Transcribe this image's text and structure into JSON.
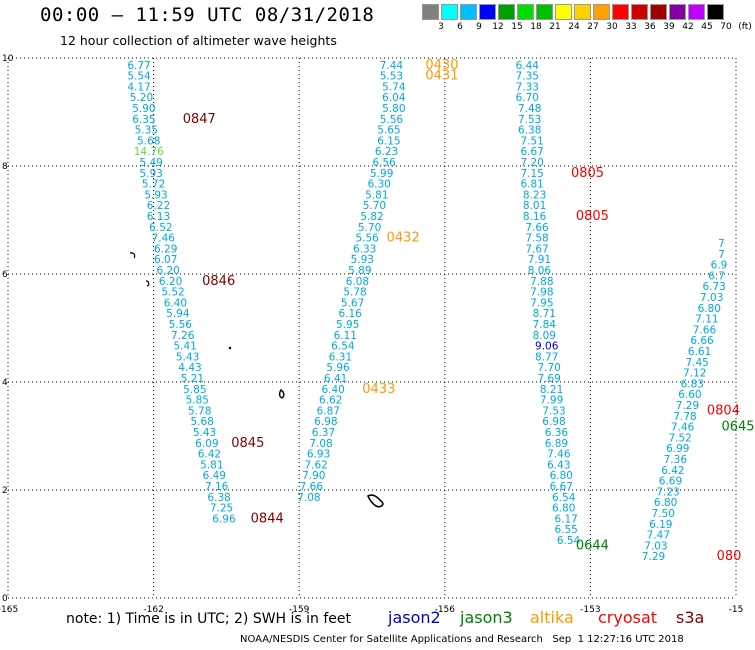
{
  "header": {
    "title": "00:00 – 11:59 UTC 08/31/2018",
    "subtitle": "12 hour collection of altimeter wave heights"
  },
  "legend_bar": {
    "labels": [
      "3",
      "6",
      "9",
      "12",
      "15",
      "18",
      "21",
      "24",
      "27",
      "30",
      "33",
      "36",
      "39",
      "42",
      "45",
      "70",
      "(ft)"
    ],
    "colors": [
      "#808080",
      "#00ffff",
      "#00bfff",
      "#0000ff",
      "#00a000",
      "#00e000",
      "#00c000",
      "#ffff00",
      "#ffd000",
      "#ffa000",
      "#ff0000",
      "#d00000",
      "#a00000",
      "#8000a0",
      "#c000ff",
      "#000000"
    ]
  },
  "footer": {
    "note": "note: 1) Time is in UTC; 2) SWH is in feet",
    "sat_jason2": "jason2",
    "sat_jason3": "jason3",
    "sat_altika": "altika",
    "sat_cryosat": "cryosat",
    "sat_s3a": "s3a",
    "credit": "NOAA/NESDIS Center for Satellite Applications and Research   Sep  1 12:27:16 UTC 2018"
  },
  "chart_data": {
    "type": "scatter",
    "title": "12 hour collection of altimeter wave heights",
    "xlabel": "",
    "ylabel": "",
    "xlim": [
      -165,
      -150
    ],
    "ylim": [
      0,
      10
    ],
    "x_ticks": [
      "-165",
      "-162",
      "-159",
      "-156",
      "-153",
      "-15"
    ],
    "y_ticks": [
      "0",
      "2",
      "4",
      "6",
      "8",
      "10"
    ],
    "grid": true,
    "colors": {
      "cyan": "#00aadd",
      "orange": "#ff9900",
      "maroon": "#800000",
      "red": "#ff0000",
      "green": "#008000",
      "lightgreen": "#66dd33",
      "blue": "#0000cc"
    },
    "tracks": [
      {
        "name": "track-a",
        "color": "#00aadd",
        "points": [
          [
            -162.3,
            9.8,
            "6.77"
          ],
          [
            -162.3,
            9.6,
            "5.54"
          ],
          [
            -162.3,
            9.4,
            "4.17"
          ],
          [
            -162.25,
            9.2,
            "5.20"
          ],
          [
            -162.2,
            9.0,
            "5.90"
          ],
          [
            -162.2,
            8.8,
            "6.35"
          ],
          [
            -162.15,
            8.6,
            "5.35"
          ],
          [
            -162.1,
            8.4,
            "5.68"
          ],
          [
            -162.1,
            8.2,
            "14.76"
          ],
          [
            -162.05,
            8.0,
            "5.49"
          ],
          [
            -162.05,
            7.8,
            "5.93"
          ],
          [
            -162.0,
            7.6,
            "5.72"
          ],
          [
            -161.95,
            7.4,
            "5.93"
          ],
          [
            -161.9,
            7.2,
            "6.22"
          ],
          [
            -161.9,
            7.0,
            "6.13"
          ],
          [
            -161.85,
            6.8,
            "6.52"
          ],
          [
            -161.8,
            6.6,
            "7.46"
          ],
          [
            -161.75,
            6.4,
            "6.29"
          ],
          [
            -161.75,
            6.2,
            "6.07"
          ],
          [
            -161.7,
            6.0,
            "6.20"
          ],
          [
            -161.65,
            5.8,
            "6.20"
          ],
          [
            -161.6,
            5.6,
            "5.52"
          ],
          [
            -161.55,
            5.4,
            "6.40"
          ],
          [
            -161.5,
            5.2,
            "5.94"
          ],
          [
            -161.45,
            5.0,
            "5.56"
          ],
          [
            -161.4,
            4.8,
            "7.26"
          ],
          [
            -161.35,
            4.6,
            "5.41"
          ],
          [
            -161.3,
            4.4,
            "5.43"
          ],
          [
            -161.25,
            4.2,
            "4.43"
          ],
          [
            -161.2,
            4.0,
            "5.21"
          ],
          [
            -161.15,
            3.8,
            "5.85"
          ],
          [
            -161.1,
            3.6,
            "5.85"
          ],
          [
            -161.05,
            3.4,
            "5.78"
          ],
          [
            -161.0,
            3.2,
            "5.68"
          ],
          [
            -160.95,
            3.0,
            "5.43"
          ],
          [
            -160.9,
            2.8,
            "6.09"
          ],
          [
            -160.85,
            2.6,
            "6.42"
          ],
          [
            -160.8,
            2.4,
            "5.81"
          ],
          [
            -160.75,
            2.2,
            "6.49"
          ],
          [
            -160.7,
            2.0,
            "7.16"
          ],
          [
            -160.65,
            1.8,
            "6.38"
          ],
          [
            -160.6,
            1.6,
            "7.25"
          ],
          [
            -160.55,
            1.4,
            "6.96"
          ]
        ]
      },
      {
        "name": "track-b",
        "color": "#00aadd",
        "points": [
          [
            -157.1,
            9.8,
            "7.44"
          ],
          [
            -157.1,
            9.6,
            "5.53"
          ],
          [
            -157.05,
            9.4,
            "5.74"
          ],
          [
            -157.05,
            9.2,
            "6.04"
          ],
          [
            -157.05,
            9.0,
            "5.80"
          ],
          [
            -157.1,
            8.8,
            "5.56"
          ],
          [
            -157.15,
            8.6,
            "5.65"
          ],
          [
            -157.15,
            8.4,
            "6.15"
          ],
          [
            -157.2,
            8.2,
            "6.23"
          ],
          [
            -157.25,
            8.0,
            "6.56"
          ],
          [
            -157.3,
            7.8,
            "5.99"
          ],
          [
            -157.35,
            7.6,
            "6.30"
          ],
          [
            -157.4,
            7.4,
            "5.81"
          ],
          [
            -157.45,
            7.2,
            "5.70"
          ],
          [
            -157.5,
            7.0,
            "5.82"
          ],
          [
            -157.55,
            6.8,
            "5.70"
          ],
          [
            -157.6,
            6.6,
            "5.56"
          ],
          [
            -157.65,
            6.4,
            "6.33"
          ],
          [
            -157.7,
            6.2,
            "5.93"
          ],
          [
            -157.75,
            6.0,
            "5.89"
          ],
          [
            -157.8,
            5.8,
            "6.08"
          ],
          [
            -157.85,
            5.6,
            "5.78"
          ],
          [
            -157.9,
            5.4,
            "5.67"
          ],
          [
            -157.95,
            5.2,
            "6.16"
          ],
          [
            -158.0,
            5.0,
            "5.95"
          ],
          [
            -158.05,
            4.8,
            "6.11"
          ],
          [
            -158.1,
            4.6,
            "6.54"
          ],
          [
            -158.15,
            4.4,
            "6.31"
          ],
          [
            -158.2,
            4.2,
            "5.96"
          ],
          [
            -158.25,
            4.0,
            "6.41"
          ],
          [
            -158.3,
            3.8,
            "6.40"
          ],
          [
            -158.35,
            3.6,
            "6.62"
          ],
          [
            -158.4,
            3.4,
            "6.87"
          ],
          [
            -158.45,
            3.2,
            "6.98"
          ],
          [
            -158.5,
            3.0,
            "6.37"
          ],
          [
            -158.55,
            2.8,
            "7.08"
          ],
          [
            -158.6,
            2.6,
            "6.93"
          ],
          [
            -158.65,
            2.4,
            "7.62"
          ],
          [
            -158.7,
            2.2,
            "7.90"
          ],
          [
            -158.75,
            2.0,
            "7.66"
          ],
          [
            -158.8,
            1.8,
            "7.08"
          ]
        ]
      },
      {
        "name": "track-c",
        "color": "#00aadd",
        "points": [
          [
            -154.3,
            9.8,
            "6.44"
          ],
          [
            -154.3,
            9.6,
            "7.35"
          ],
          [
            -154.3,
            9.4,
            "7.33"
          ],
          [
            -154.3,
            9.2,
            "6.70"
          ],
          [
            -154.25,
            9.0,
            "7.48"
          ],
          [
            -154.25,
            8.8,
            "7.53"
          ],
          [
            -154.25,
            8.6,
            "6.38"
          ],
          [
            -154.2,
            8.4,
            "7.51"
          ],
          [
            -154.2,
            8.2,
            "6.67"
          ],
          [
            -154.2,
            8.0,
            "7.20"
          ],
          [
            -154.2,
            7.8,
            "7.15"
          ],
          [
            -154.2,
            7.6,
            "6.81"
          ],
          [
            -154.15,
            7.4,
            "8.23"
          ],
          [
            -154.15,
            7.2,
            "8.01"
          ],
          [
            -154.15,
            7.0,
            "8.16"
          ],
          [
            -154.1,
            6.8,
            "7.66"
          ],
          [
            -154.1,
            6.6,
            "7.58"
          ],
          [
            -154.1,
            6.4,
            "7.67"
          ],
          [
            -154.05,
            6.2,
            "7.91"
          ],
          [
            -154.05,
            6.0,
            "8.06"
          ],
          [
            -154.0,
            5.8,
            "7.88"
          ],
          [
            -154.0,
            5.6,
            "7.98"
          ],
          [
            -154.0,
            5.4,
            "7.95"
          ],
          [
            -153.95,
            5.2,
            "8.71"
          ],
          [
            -153.95,
            5.0,
            "7.84"
          ],
          [
            -153.95,
            4.8,
            "8.09"
          ],
          [
            -153.9,
            4.6,
            "9.06"
          ],
          [
            -153.9,
            4.4,
            "8.77"
          ],
          [
            -153.85,
            4.2,
            "7.70"
          ],
          [
            -153.85,
            4.0,
            "7.69"
          ],
          [
            -153.8,
            3.8,
            "8.21"
          ],
          [
            -153.8,
            3.6,
            "7.99"
          ],
          [
            -153.75,
            3.4,
            "7.53"
          ],
          [
            -153.75,
            3.2,
            "6.98"
          ],
          [
            -153.7,
            3.0,
            "6.36"
          ],
          [
            -153.7,
            2.8,
            "6.89"
          ],
          [
            -153.65,
            2.6,
            "7.46"
          ],
          [
            -153.65,
            2.4,
            "6.43"
          ],
          [
            -153.6,
            2.2,
            "6.80"
          ],
          [
            -153.6,
            2.0,
            "6.67"
          ],
          [
            -153.55,
            1.8,
            "6.54"
          ],
          [
            -153.55,
            1.6,
            "6.80"
          ],
          [
            -153.5,
            1.4,
            "6.17"
          ],
          [
            -153.5,
            1.2,
            "6.55"
          ],
          [
            -153.45,
            1.0,
            "6.54"
          ]
        ]
      },
      {
        "name": "track-d",
        "color": "#00aadd",
        "points": [
          [
            -150.3,
            6.5,
            "7"
          ],
          [
            -150.3,
            6.3,
            "7"
          ],
          [
            -150.35,
            6.1,
            "6.9"
          ],
          [
            -150.4,
            5.9,
            "6.7"
          ],
          [
            -150.45,
            5.7,
            "6.73"
          ],
          [
            -150.5,
            5.5,
            "7.03"
          ],
          [
            -150.55,
            5.3,
            "6.80"
          ],
          [
            -150.6,
            5.1,
            "7.11"
          ],
          [
            -150.65,
            4.9,
            "7.66"
          ],
          [
            -150.7,
            4.7,
            "6.66"
          ],
          [
            -150.75,
            4.5,
            "6.61"
          ],
          [
            -150.8,
            4.3,
            "7.45"
          ],
          [
            -150.85,
            4.1,
            "7.12"
          ],
          [
            -150.9,
            3.9,
            "6.83"
          ],
          [
            -150.95,
            3.7,
            "6.60"
          ],
          [
            -151.0,
            3.5,
            "7.29"
          ],
          [
            -151.05,
            3.3,
            "7.78"
          ],
          [
            -151.1,
            3.1,
            "7.46"
          ],
          [
            -151.15,
            2.9,
            "7.52"
          ],
          [
            -151.2,
            2.7,
            "6.99"
          ],
          [
            -151.25,
            2.5,
            "7.36"
          ],
          [
            -151.3,
            2.3,
            "6.42"
          ],
          [
            -151.35,
            2.1,
            "6.69"
          ],
          [
            -151.4,
            1.9,
            "7.23"
          ],
          [
            -151.45,
            1.7,
            "6.80"
          ],
          [
            -151.5,
            1.5,
            "7.50"
          ],
          [
            -151.55,
            1.3,
            "6.19"
          ],
          [
            -151.6,
            1.1,
            "7.47"
          ],
          [
            -151.65,
            0.9,
            "7.03"
          ],
          [
            -151.7,
            0.7,
            "7.29"
          ]
        ]
      }
    ],
    "time_labels": [
      {
        "x": -161.4,
        "y": 8.8,
        "text": "0847",
        "color": "#800000"
      },
      {
        "x": -161.0,
        "y": 5.8,
        "text": "0846",
        "color": "#800000"
      },
      {
        "x": -160.4,
        "y": 2.8,
        "text": "0845",
        "color": "#800000"
      },
      {
        "x": -160.0,
        "y": 1.4,
        "text": "0844",
        "color": "#800000"
      },
      {
        "x": -156.4,
        "y": 9.8,
        "text": "0430",
        "color": "#ff9900"
      },
      {
        "x": -156.4,
        "y": 9.6,
        "text": "0431",
        "color": "#ff9900"
      },
      {
        "x": -157.2,
        "y": 6.6,
        "text": "0432",
        "color": "#ff9900"
      },
      {
        "x": -157.7,
        "y": 3.8,
        "text": "0433",
        "color": "#ff9900"
      },
      {
        "x": -153.4,
        "y": 7.8,
        "text": "0805",
        "color": "#ff0000"
      },
      {
        "x": -153.3,
        "y": 7.0,
        "text": "0805",
        "color": "#ff0000"
      },
      {
        "x": -150.6,
        "y": 3.4,
        "text": "0804",
        "color": "#ff0000"
      },
      {
        "x": -150.3,
        "y": 3.1,
        "text": "0645",
        "color": "#008000"
      },
      {
        "x": -153.3,
        "y": 0.9,
        "text": "0644",
        "color": "#008000"
      },
      {
        "x": -150.4,
        "y": 0.7,
        "text": "080",
        "color": "#ff0000"
      }
    ]
  }
}
